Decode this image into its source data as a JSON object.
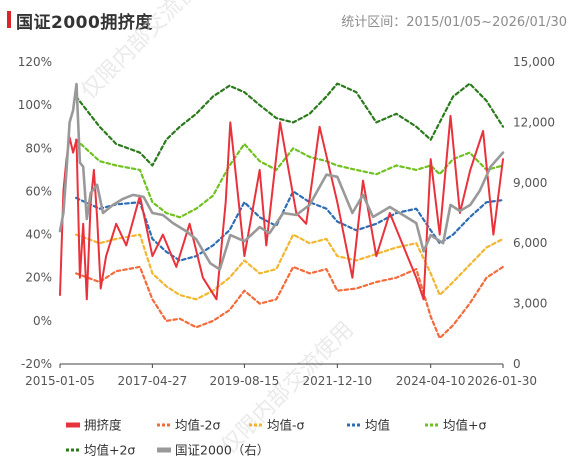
{
  "header": {
    "title": "国证2000拥挤度",
    "subtitle": "统计区间：2015/01/05~2026/01/30"
  },
  "watermark": "仅限内部交流使用",
  "chart_data": {
    "type": "line",
    "title": "国证2000拥挤度",
    "x_ticks": [
      "2015-01-05",
      "2017-04-27",
      "2019-08-15",
      "2021-12-10",
      "2024-04-10",
      "2026-01-30"
    ],
    "x_range": [
      "2015-01-05",
      "2026-01-30"
    ],
    "y_left": {
      "ticks": [
        "-20%",
        "0%",
        "20%",
        "40%",
        "60%",
        "80%",
        "100%",
        "120%"
      ],
      "range": [
        -20,
        120
      ]
    },
    "y_right": {
      "ticks": [
        "0",
        "3,000",
        "6,000",
        "9,000",
        "12,000",
        "15,000"
      ],
      "range": [
        0,
        15000
      ]
    },
    "legend_position": "bottom",
    "grid": false,
    "series": [
      {
        "name": "拥挤度",
        "axis": "left",
        "color": "#e8323c",
        "style": "solid",
        "x": [
          "2015-01-05",
          "2015-02-05",
          "2015-03-05",
          "2015-04-03",
          "2015-05-05",
          "2015-06-05",
          "2015-07-06",
          "2015-08-05",
          "2015-09-07",
          "2015-10-12",
          "2015-11-10",
          "2015-12-10",
          "2016-01-11",
          "2016-03-01",
          "2016-06-01",
          "2016-09-01",
          "2017-01-03",
          "2017-04-27",
          "2017-08-01",
          "2017-12-01",
          "2018-04-02",
          "2018-08-01",
          "2018-12-03",
          "2019-02-25",
          "2019-04-08",
          "2019-08-15",
          "2020-01-02",
          "2020-03-02",
          "2020-07-06",
          "2020-12-01",
          "2021-03-01",
          "2021-07-01",
          "2021-12-10",
          "2022-04-27",
          "2022-08-01",
          "2022-12-01",
          "2023-04-03",
          "2023-08-01",
          "2023-12-01",
          "2024-02-05",
          "2024-04-10",
          "2024-07-01",
          "2024-10-08",
          "2025-01-02",
          "2025-04-07",
          "2025-08-01",
          "2025-11-03",
          "2026-01-30"
        ],
        "values": [
          12,
          60,
          75,
          85,
          78,
          84,
          20,
          45,
          10,
          55,
          70,
          48,
          15,
          30,
          45,
          35,
          58,
          30,
          40,
          25,
          45,
          20,
          10,
          55,
          92,
          30,
          70,
          35,
          92,
          50,
          45,
          90,
          55,
          20,
          65,
          30,
          50,
          35,
          20,
          10,
          75,
          40,
          95,
          50,
          70,
          88,
          40,
          75
        ]
      },
      {
        "name": "均值-2σ",
        "axis": "left",
        "color": "#f26b3a",
        "style": "dashed",
        "x": [
          "2015-06-01",
          "2016-01-01",
          "2016-06-01",
          "2017-01-03",
          "2017-04-27",
          "2017-09-01",
          "2018-01-02",
          "2018-06-01",
          "2018-11-01",
          "2019-04-01",
          "2019-08-15",
          "2020-01-02",
          "2020-06-01",
          "2020-11-02",
          "2021-04-01",
          "2021-09-01",
          "2021-12-10",
          "2022-06-01",
          "2022-12-01",
          "2023-06-01",
          "2023-12-01",
          "2024-04-10",
          "2024-07-01",
          "2024-11-01",
          "2025-04-01",
          "2025-09-01",
          "2026-01-30"
        ],
        "values": [
          22,
          18,
          23,
          25,
          10,
          0,
          1,
          -3,
          0,
          5,
          14,
          8,
          10,
          25,
          22,
          24,
          14,
          15,
          18,
          20,
          24,
          2,
          -8,
          -2,
          8,
          20,
          25
        ]
      },
      {
        "name": "均值-σ",
        "axis": "left",
        "color": "#f2b632",
        "style": "dashed",
        "x": [
          "2015-06-01",
          "2016-01-01",
          "2016-06-01",
          "2017-01-03",
          "2017-04-27",
          "2017-09-01",
          "2018-01-02",
          "2018-06-01",
          "2018-11-01",
          "2019-04-01",
          "2019-08-15",
          "2020-01-02",
          "2020-06-01",
          "2020-11-02",
          "2021-04-01",
          "2021-09-01",
          "2021-12-10",
          "2022-06-01",
          "2022-12-01",
          "2023-06-01",
          "2023-12-01",
          "2024-04-10",
          "2024-07-01",
          "2024-11-01",
          "2025-04-01",
          "2025-09-01",
          "2026-01-30"
        ],
        "values": [
          40,
          36,
          38,
          40,
          22,
          16,
          12,
          10,
          14,
          20,
          28,
          22,
          24,
          40,
          36,
          38,
          30,
          28,
          31,
          34,
          36,
          22,
          12,
          18,
          26,
          34,
          38
        ]
      },
      {
        "name": "均值",
        "axis": "left",
        "color": "#2e6db4",
        "style": "dashed",
        "x": [
          "2015-06-01",
          "2016-01-01",
          "2016-06-01",
          "2017-01-03",
          "2017-04-27",
          "2017-09-01",
          "2018-01-02",
          "2018-06-01",
          "2018-11-01",
          "2019-04-01",
          "2019-08-15",
          "2020-01-02",
          "2020-06-01",
          "2020-11-02",
          "2021-04-01",
          "2021-09-01",
          "2021-12-10",
          "2022-06-01",
          "2022-12-01",
          "2023-06-01",
          "2023-12-01",
          "2024-04-10",
          "2024-07-01",
          "2024-11-01",
          "2025-04-01",
          "2025-09-01",
          "2026-01-30"
        ],
        "values": [
          57,
          52,
          54,
          55,
          38,
          32,
          28,
          30,
          35,
          42,
          55,
          48,
          44,
          60,
          55,
          52,
          46,
          42,
          45,
          50,
          52,
          42,
          36,
          40,
          48,
          55,
          56
        ]
      },
      {
        "name": "均值+σ",
        "axis": "left",
        "color": "#6fc21f",
        "style": "dashed",
        "x": [
          "2015-06-01",
          "2016-01-01",
          "2016-06-01",
          "2017-01-03",
          "2017-04-27",
          "2017-09-01",
          "2018-01-02",
          "2018-06-01",
          "2018-11-01",
          "2019-04-01",
          "2019-08-15",
          "2020-01-02",
          "2020-06-01",
          "2020-11-02",
          "2021-04-01",
          "2021-09-01",
          "2021-12-10",
          "2022-06-01",
          "2022-12-01",
          "2023-06-01",
          "2023-12-01",
          "2024-04-10",
          "2024-07-01",
          "2024-11-01",
          "2025-04-01",
          "2025-09-01",
          "2026-01-30"
        ],
        "values": [
          84,
          74,
          72,
          70,
          55,
          50,
          48,
          52,
          58,
          72,
          82,
          74,
          70,
          80,
          76,
          74,
          72,
          70,
          68,
          72,
          70,
          72,
          68,
          75,
          78,
          70,
          72
        ]
      },
      {
        "name": "均值+2σ",
        "axis": "left",
        "color": "#2c7a1e",
        "style": "dashed",
        "x": [
          "2015-06-01",
          "2016-01-01",
          "2016-06-01",
          "2017-01-03",
          "2017-04-27",
          "2017-09-01",
          "2018-01-02",
          "2018-06-01",
          "2018-11-01",
          "2019-04-01",
          "2019-08-15",
          "2020-01-02",
          "2020-06-01",
          "2020-11-02",
          "2021-04-01",
          "2021-09-01",
          "2021-12-10",
          "2022-06-01",
          "2022-12-01",
          "2023-06-01",
          "2023-12-01",
          "2024-04-10",
          "2024-07-01",
          "2024-11-01",
          "2025-04-01",
          "2025-09-01",
          "2026-01-30"
        ],
        "values": [
          104,
          90,
          82,
          78,
          72,
          84,
          90,
          96,
          104,
          109,
          106,
          100,
          94,
          92,
          96,
          104,
          110,
          106,
          92,
          96,
          90,
          84,
          92,
          104,
          110,
          102,
          90
        ]
      },
      {
        "name": "国证2000（右）",
        "axis": "right",
        "color": "#999999",
        "style": "solid",
        "x": [
          "2015-01-05",
          "2015-02-05",
          "2015-03-05",
          "2015-04-03",
          "2015-05-05",
          "2015-06-05",
          "2015-07-06",
          "2015-08-05",
          "2015-09-07",
          "2015-10-12",
          "2015-12-10",
          "2016-02-01",
          "2016-05-03",
          "2016-08-01",
          "2016-11-01",
          "2017-02-06",
          "2017-04-27",
          "2017-08-01",
          "2017-11-01",
          "2018-03-01",
          "2018-06-01",
          "2018-10-08",
          "2019-01-02",
          "2019-04-08",
          "2019-08-15",
          "2020-01-02",
          "2020-04-01",
          "2020-08-03",
          "2020-12-01",
          "2021-04-01",
          "2021-09-01",
          "2021-12-10",
          "2022-04-27",
          "2022-08-01",
          "2022-11-01",
          "2023-04-03",
          "2023-08-01",
          "2023-12-01",
          "2024-02-05",
          "2024-04-10",
          "2024-08-01",
          "2024-10-08",
          "2025-01-02",
          "2025-04-07",
          "2025-07-01",
          "2025-10-09",
          "2026-01-30"
        ],
        "values": [
          6600,
          7500,
          9600,
          12000,
          12600,
          13900,
          10000,
          9800,
          7200,
          8500,
          8900,
          7500,
          7900,
          8200,
          8400,
          8300,
          7500,
          7400,
          7000,
          6600,
          6200,
          5000,
          4700,
          6400,
          6100,
          6800,
          6500,
          7500,
          7400,
          7900,
          9400,
          9300,
          7500,
          8400,
          7300,
          7800,
          7400,
          7000,
          5600,
          6400,
          6000,
          7900,
          7600,
          7900,
          8600,
          9800,
          10500
        ]
      }
    ]
  }
}
